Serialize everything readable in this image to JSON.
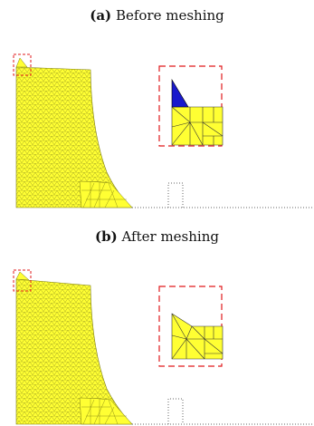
{
  "panels": [
    {
      "tag": "(a)",
      "caption": "Before meshing"
    },
    {
      "tag": "(b)",
      "caption": "After meshing"
    }
  ],
  "colors": {
    "mesh_fill": "#ffff33",
    "mesh_line": "#8c8c1a",
    "highlight_box": "#e0191b",
    "defect_element": "#1a1acc",
    "dotted_outline": "#666666"
  }
}
